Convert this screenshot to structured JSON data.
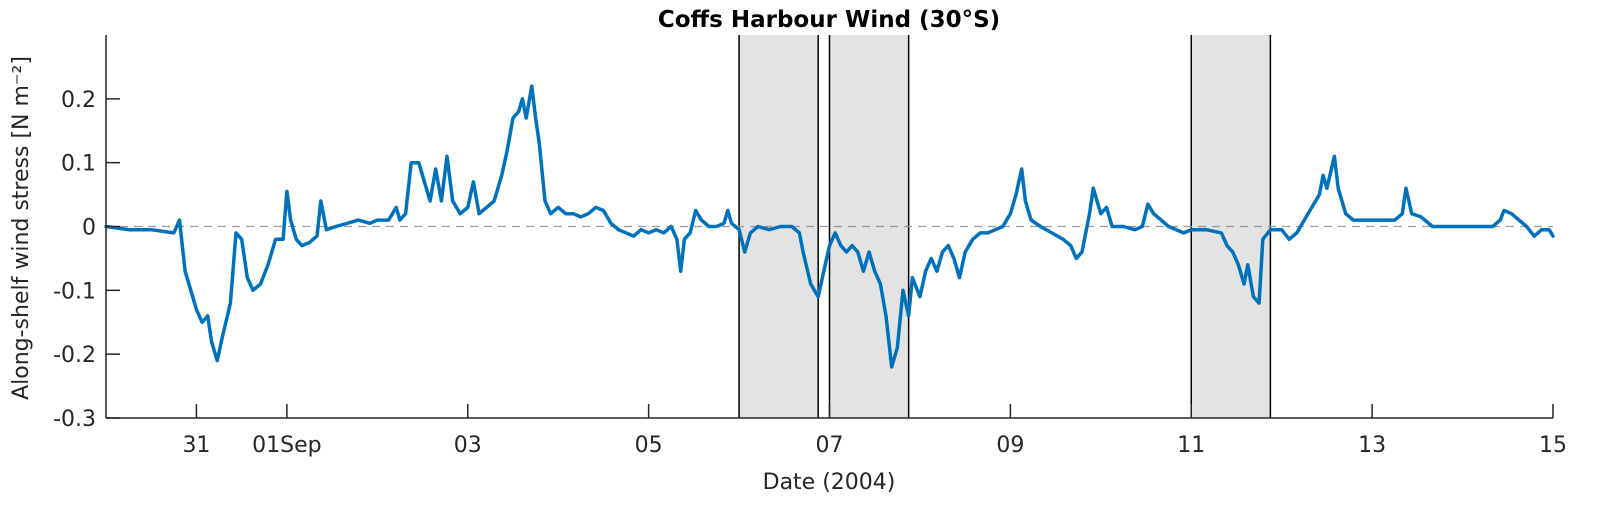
{
  "chart_data": {
    "type": "line",
    "title": "Coffs Harbour Wind (30°S)",
    "xlabel": "Date (2004)",
    "ylabel": "Along-shelf wind stress [N m⁻²]",
    "xlim": [
      "2004-08-30",
      "2004-09-15"
    ],
    "ylim": [
      -0.3,
      0.3
    ],
    "grid": false,
    "xticks": [
      {
        "date": "2004-08-31",
        "label": "31"
      },
      {
        "date": "2004-09-01",
        "label": "01Sep"
      },
      {
        "date": "2004-09-03",
        "label": "03"
      },
      {
        "date": "2004-09-05",
        "label": "05"
      },
      {
        "date": "2004-09-07",
        "label": "07"
      },
      {
        "date": "2004-09-09",
        "label": "09"
      },
      {
        "date": "2004-09-11",
        "label": "11"
      },
      {
        "date": "2004-09-13",
        "label": "13"
      },
      {
        "date": "2004-09-15",
        "label": "15"
      }
    ],
    "yticks": [
      {
        "value": -0.3,
        "label": "-0.3"
      },
      {
        "value": -0.2,
        "label": "-0.2"
      },
      {
        "value": -0.1,
        "label": "-0.1"
      },
      {
        "value": 0,
        "label": "0"
      },
      {
        "value": 0.1,
        "label": "0.1"
      },
      {
        "value": 0.2,
        "label": "0.2"
      }
    ],
    "zero_line": {
      "value": 0,
      "style": "dashed",
      "color": "#999999"
    },
    "shaded_periods": [
      {
        "start": "2004-09-06 00:00",
        "end": "2004-09-06 21:00"
      },
      {
        "start": "2004-09-07 00:00",
        "end": "2004-09-07 21:00"
      },
      {
        "start": "2004-09-11 00:00",
        "end": "2004-09-11 21:00"
      }
    ],
    "series": [
      {
        "color": "#0072BD",
        "points": [
          [
            "2004-08-30 00:00",
            0.0
          ],
          [
            "2004-08-30 06:00",
            -0.005
          ],
          [
            "2004-08-30 12:00",
            -0.005
          ],
          [
            "2004-08-30 18:00",
            -0.01
          ],
          [
            "2004-08-30 19:30",
            0.01
          ],
          [
            "2004-08-30 21:00",
            -0.07
          ],
          [
            "2004-08-30 22:30",
            -0.1
          ],
          [
            "2004-08-31 00:00",
            -0.13
          ],
          [
            "2004-08-31 01:30",
            -0.15
          ],
          [
            "2004-08-31 03:00",
            -0.14
          ],
          [
            "2004-08-31 04:00",
            -0.18
          ],
          [
            "2004-08-31 05:30",
            -0.21
          ],
          [
            "2004-08-31 07:00",
            -0.17
          ],
          [
            "2004-08-31 09:00",
            -0.12
          ],
          [
            "2004-08-31 10:30",
            -0.01
          ],
          [
            "2004-08-31 12:00",
            -0.02
          ],
          [
            "2004-08-31 13:30",
            -0.08
          ],
          [
            "2004-08-31 15:00",
            -0.1
          ],
          [
            "2004-08-31 17:00",
            -0.09
          ],
          [
            "2004-08-31 19:00",
            -0.06
          ],
          [
            "2004-08-31 21:00",
            -0.02
          ],
          [
            "2004-08-31 23:00",
            -0.02
          ],
          [
            "2004-09-01 00:00",
            0.055
          ],
          [
            "2004-09-01 01:00",
            0.01
          ],
          [
            "2004-09-01 02:30",
            -0.02
          ],
          [
            "2004-09-01 04:00",
            -0.03
          ],
          [
            "2004-09-01 06:00",
            -0.025
          ],
          [
            "2004-09-01 08:00",
            -0.015
          ],
          [
            "2004-09-01 09:00",
            0.04
          ],
          [
            "2004-09-01 10:30",
            -0.005
          ],
          [
            "2004-09-01 13:00",
            0.0
          ],
          [
            "2004-09-01 16:00",
            0.005
          ],
          [
            "2004-09-01 19:00",
            0.01
          ],
          [
            "2004-09-01 22:00",
            0.005
          ],
          [
            "2004-09-02 00:00",
            0.01
          ],
          [
            "2004-09-02 03:00",
            0.01
          ],
          [
            "2004-09-02 05:00",
            0.03
          ],
          [
            "2004-09-02 06:00",
            0.01
          ],
          [
            "2004-09-02 07:30",
            0.02
          ],
          [
            "2004-09-02 09:00",
            0.1
          ],
          [
            "2004-09-02 11:00",
            0.1
          ],
          [
            "2004-09-02 13:00",
            0.06
          ],
          [
            "2004-09-02 14:00",
            0.04
          ],
          [
            "2004-09-02 15:30",
            0.09
          ],
          [
            "2004-09-02 17:00",
            0.04
          ],
          [
            "2004-09-02 18:30",
            0.11
          ],
          [
            "2004-09-02 20:00",
            0.04
          ],
          [
            "2004-09-02 22:00",
            0.02
          ],
          [
            "2004-09-03 00:00",
            0.03
          ],
          [
            "2004-09-03 01:30",
            0.07
          ],
          [
            "2004-09-03 03:00",
            0.02
          ],
          [
            "2004-09-03 05:00",
            0.03
          ],
          [
            "2004-09-03 07:00",
            0.04
          ],
          [
            "2004-09-03 09:00",
            0.08
          ],
          [
            "2004-09-03 10:30",
            0.12
          ],
          [
            "2004-09-03 12:00",
            0.17
          ],
          [
            "2004-09-03 13:30",
            0.18
          ],
          [
            "2004-09-03 14:30",
            0.2
          ],
          [
            "2004-09-03 15:30",
            0.17
          ],
          [
            "2004-09-03 17:00",
            0.22
          ],
          [
            "2004-09-03 18:00",
            0.17
          ],
          [
            "2004-09-03 19:00",
            0.13
          ],
          [
            "2004-09-03 20:30",
            0.04
          ],
          [
            "2004-09-03 22:00",
            0.02
          ],
          [
            "2004-09-04 00:00",
            0.03
          ],
          [
            "2004-09-04 02:00",
            0.02
          ],
          [
            "2004-09-04 04:00",
            0.02
          ],
          [
            "2004-09-04 06:00",
            0.015
          ],
          [
            "2004-09-04 08:00",
            0.02
          ],
          [
            "2004-09-04 10:00",
            0.03
          ],
          [
            "2004-09-04 12:00",
            0.025
          ],
          [
            "2004-09-04 14:00",
            0.005
          ],
          [
            "2004-09-04 16:00",
            -0.005
          ],
          [
            "2004-09-04 18:00",
            -0.01
          ],
          [
            "2004-09-04 20:00",
            -0.015
          ],
          [
            "2004-09-04 22:00",
            -0.005
          ],
          [
            "2004-09-05 00:00",
            -0.01
          ],
          [
            "2004-09-05 02:00",
            -0.005
          ],
          [
            "2004-09-05 04:00",
            -0.01
          ],
          [
            "2004-09-05 06:00",
            0.0
          ],
          [
            "2004-09-05 07:30",
            -0.02
          ],
          [
            "2004-09-05 08:30",
            -0.07
          ],
          [
            "2004-09-05 09:30",
            -0.02
          ],
          [
            "2004-09-05 11:00",
            -0.01
          ],
          [
            "2004-09-05 12:30",
            0.025
          ],
          [
            "2004-09-05 14:00",
            0.01
          ],
          [
            "2004-09-05 16:00",
            0.0
          ],
          [
            "2004-09-05 18:00",
            0.0
          ],
          [
            "2004-09-05 20:00",
            0.005
          ],
          [
            "2004-09-05 21:00",
            0.025
          ],
          [
            "2004-09-05 22:00",
            0.005
          ],
          [
            "2004-09-06 00:00",
            -0.005
          ],
          [
            "2004-09-06 01:30",
            -0.04
          ],
          [
            "2004-09-06 03:00",
            -0.01
          ],
          [
            "2004-09-06 05:00",
            0.0
          ],
          [
            "2004-09-06 08:00",
            -0.005
          ],
          [
            "2004-09-06 11:00",
            0.0
          ],
          [
            "2004-09-06 14:00",
            0.0
          ],
          [
            "2004-09-06 16:00",
            -0.01
          ],
          [
            "2004-09-06 17:00",
            -0.04
          ],
          [
            "2004-09-06 19:00",
            -0.09
          ],
          [
            "2004-09-06 21:00",
            -0.11
          ],
          [
            "2004-09-06 22:30",
            -0.07
          ],
          [
            "2004-09-07 00:00",
            -0.03
          ],
          [
            "2004-09-07 01:30",
            -0.01
          ],
          [
            "2004-09-07 03:00",
            -0.03
          ],
          [
            "2004-09-07 04:30",
            -0.04
          ],
          [
            "2004-09-07 06:00",
            -0.03
          ],
          [
            "2004-09-07 07:30",
            -0.04
          ],
          [
            "2004-09-07 09:00",
            -0.07
          ],
          [
            "2004-09-07 10:30",
            -0.04
          ],
          [
            "2004-09-07 12:00",
            -0.07
          ],
          [
            "2004-09-07 13:30",
            -0.09
          ],
          [
            "2004-09-07 15:00",
            -0.14
          ],
          [
            "2004-09-07 16:30",
            -0.22
          ],
          [
            "2004-09-07 18:00",
            -0.19
          ],
          [
            "2004-09-07 19:30",
            -0.1
          ],
          [
            "2004-09-07 21:00",
            -0.14
          ],
          [
            "2004-09-07 22:00",
            -0.08
          ],
          [
            "2004-09-08 00:00",
            -0.11
          ],
          [
            "2004-09-08 01:30",
            -0.07
          ],
          [
            "2004-09-08 03:00",
            -0.05
          ],
          [
            "2004-09-08 04:30",
            -0.07
          ],
          [
            "2004-09-08 06:00",
            -0.04
          ],
          [
            "2004-09-08 07:30",
            -0.03
          ],
          [
            "2004-09-08 09:00",
            -0.05
          ],
          [
            "2004-09-08 10:30",
            -0.08
          ],
          [
            "2004-09-08 12:00",
            -0.04
          ],
          [
            "2004-09-08 14:00",
            -0.02
          ],
          [
            "2004-09-08 16:00",
            -0.01
          ],
          [
            "2004-09-08 18:00",
            -0.01
          ],
          [
            "2004-09-08 20:00",
            -0.005
          ],
          [
            "2004-09-08 22:00",
            0.0
          ],
          [
            "2004-09-09 00:00",
            0.02
          ],
          [
            "2004-09-09 01:30",
            0.05
          ],
          [
            "2004-09-09 03:00",
            0.09
          ],
          [
            "2004-09-09 04:00",
            0.04
          ],
          [
            "2004-09-09 05:30",
            0.01
          ],
          [
            "2004-09-09 08:00",
            0.0
          ],
          [
            "2004-09-09 11:00",
            -0.01
          ],
          [
            "2004-09-09 14:00",
            -0.02
          ],
          [
            "2004-09-09 16:00",
            -0.03
          ],
          [
            "2004-09-09 17:30",
            -0.05
          ],
          [
            "2004-09-09 19:00",
            -0.04
          ],
          [
            "2004-09-09 21:00",
            0.02
          ],
          [
            "2004-09-09 22:00",
            0.06
          ],
          [
            "2004-09-10 00:00",
            0.02
          ],
          [
            "2004-09-10 01:30",
            0.03
          ],
          [
            "2004-09-10 03:00",
            0.0
          ],
          [
            "2004-09-10 06:00",
            0.0
          ],
          [
            "2004-09-10 09:00",
            -0.005
          ],
          [
            "2004-09-10 11:00",
            0.0
          ],
          [
            "2004-09-10 12:30",
            0.035
          ],
          [
            "2004-09-10 14:00",
            0.02
          ],
          [
            "2004-09-10 16:00",
            0.01
          ],
          [
            "2004-09-10 18:00",
            0.0
          ],
          [
            "2004-09-10 20:00",
            -0.005
          ],
          [
            "2004-09-10 22:00",
            -0.01
          ],
          [
            "2004-09-11 00:00",
            -0.005
          ],
          [
            "2004-09-11 04:00",
            -0.005
          ],
          [
            "2004-09-11 08:00",
            -0.01
          ],
          [
            "2004-09-11 09:30",
            -0.03
          ],
          [
            "2004-09-11 11:00",
            -0.04
          ],
          [
            "2004-09-11 12:30",
            -0.06
          ],
          [
            "2004-09-11 14:00",
            -0.09
          ],
          [
            "2004-09-11 15:00",
            -0.06
          ],
          [
            "2004-09-11 16:30",
            -0.11
          ],
          [
            "2004-09-11 18:00",
            -0.12
          ],
          [
            "2004-09-11 19:00",
            -0.02
          ],
          [
            "2004-09-11 21:00",
            -0.005
          ],
          [
            "2004-09-12 00:00",
            -0.005
          ],
          [
            "2004-09-12 02:00",
            -0.02
          ],
          [
            "2004-09-12 04:00",
            -0.01
          ],
          [
            "2004-09-12 06:00",
            0.01
          ],
          [
            "2004-09-12 08:00",
            0.03
          ],
          [
            "2004-09-12 10:00",
            0.05
          ],
          [
            "2004-09-12 11:00",
            0.08
          ],
          [
            "2004-09-12 12:00",
            0.06
          ],
          [
            "2004-09-12 14:00",
            0.11
          ],
          [
            "2004-09-12 15:00",
            0.06
          ],
          [
            "2004-09-12 17:00",
            0.02
          ],
          [
            "2004-09-12 19:00",
            0.01
          ],
          [
            "2004-09-12 22:00",
            0.01
          ],
          [
            "2004-09-13 02:00",
            0.01
          ],
          [
            "2004-09-13 06:00",
            0.01
          ],
          [
            "2004-09-13 08:00",
            0.02
          ],
          [
            "2004-09-13 09:00",
            0.06
          ],
          [
            "2004-09-13 10:30",
            0.02
          ],
          [
            "2004-09-13 13:00",
            0.015
          ],
          [
            "2004-09-13 16:00",
            0.0
          ],
          [
            "2004-09-13 20:00",
            0.0
          ],
          [
            "2004-09-14 00:00",
            0.0
          ],
          [
            "2004-09-14 04:00",
            0.0
          ],
          [
            "2004-09-14 08:00",
            0.0
          ],
          [
            "2004-09-14 10:00",
            0.01
          ],
          [
            "2004-09-14 11:00",
            0.025
          ],
          [
            "2004-09-14 13:00",
            0.02
          ],
          [
            "2004-09-14 15:00",
            0.01
          ],
          [
            "2004-09-14 17:00",
            0.0
          ],
          [
            "2004-09-14 19:00",
            -0.015
          ],
          [
            "2004-09-14 21:00",
            -0.005
          ],
          [
            "2004-09-14 23:00",
            -0.005
          ],
          [
            "2004-09-15 00:00",
            -0.015
          ]
        ]
      }
    ]
  }
}
